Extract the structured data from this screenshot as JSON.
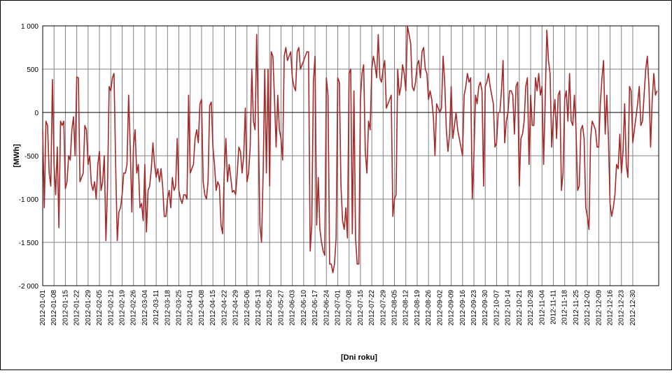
{
  "chart_data": {
    "type": "line",
    "xlabel": "[Dni roku]",
    "ylabel": "[MWh]",
    "ylim": [
      -2000,
      1000
    ],
    "ytick_values": [
      1000,
      500,
      0,
      -500,
      -1000,
      -1500,
      -2000
    ],
    "ytick_labels": [
      "1 000",
      "500",
      "0",
      "-500",
      "-1 000",
      "-1 500",
      "-2 000"
    ],
    "xlim": [
      "2012-01-01",
      "2012-12-31"
    ],
    "xtick_labels": [
      "2012-01-01",
      "2012-01-08",
      "2012-01-15",
      "2012-01-22",
      "2012-01-29",
      "2012-02-05",
      "2012-02-12",
      "2012-02-19",
      "2012-02-26",
      "2012-03-04",
      "2012-03-11",
      "2012-03-18",
      "2012-03-25",
      "2012-04-01",
      "2012-04-08",
      "2012-04-15",
      "2012-04-22",
      "2012-04-29",
      "2012-05-06",
      "2012-05-13",
      "2012-05-20",
      "2012-05-27",
      "2012-06-03",
      "2012-06-10",
      "2012-06-17",
      "2012-06-24",
      "2012-07-01",
      "2012-07-08",
      "2012-07-15",
      "2012-07-22",
      "2012-07-29",
      "2012-08-05",
      "2012-08-12",
      "2012-08-19",
      "2012-08-26",
      "2012-09-02",
      "2012-09-09",
      "2012-09-16",
      "2012-09-23",
      "2012-09-30",
      "2012-10-07",
      "2012-10-14",
      "2012-10-21",
      "2012-10-28",
      "2012-11-04",
      "2012-11-11",
      "2012-11-18",
      "2012-11-25",
      "2012-12-02",
      "2012-12-09",
      "2012-12-16",
      "2012-12-23",
      "2012-12-30"
    ],
    "grid": true,
    "legend": "none",
    "series": [
      {
        "color": "#a52a2a",
        "values": [
          -200,
          -1100,
          -100,
          -150,
          -700,
          -850,
          380,
          -600,
          -950,
          -400,
          -1330,
          -100,
          -150,
          -100,
          -880,
          -800,
          -500,
          -550,
          -200,
          -50,
          -500,
          410,
          400,
          -800,
          -750,
          -700,
          -150,
          -200,
          -600,
          -500,
          -820,
          -900,
          -800,
          -1000,
          -600,
          -450,
          -900,
          -800,
          -500,
          -1480,
          -850,
          300,
          250,
          400,
          450,
          -600,
          -1480,
          -1150,
          -1100,
          -950,
          -700,
          -700,
          -600,
          200,
          -400,
          -1150,
          -400,
          -200,
          -700,
          -600,
          -1100,
          -1050,
          -1250,
          -600,
          -1380,
          -900,
          -850,
          -650,
          -350,
          -600,
          -750,
          -650,
          -800,
          -650,
          -850,
          -1200,
          -1200,
          -1000,
          -900,
          -1100,
          -750,
          -900,
          -850,
          -300,
          -900,
          -1000,
          -1050,
          -950,
          -950,
          -1000,
          200,
          -700,
          -650,
          -600,
          -300,
          -200,
          -350,
          100,
          150,
          -800,
          -950,
          -1000,
          -800,
          80,
          120,
          -400,
          -600,
          -900,
          -800,
          -850,
          -1300,
          -1400,
          -700,
          -300,
          -800,
          -600,
          -750,
          -920,
          -900,
          -950,
          -700,
          -400,
          -450,
          -700,
          -500,
          50,
          -800,
          -700,
          -400,
          500,
          -100,
          -200,
          900,
          -100,
          -1300,
          -1500,
          -700,
          500,
          -700,
          500,
          -850,
          700,
          650,
          150,
          -400,
          200,
          -200,
          -300,
          -550,
          650,
          750,
          600,
          650,
          700,
          400,
          300,
          250,
          700,
          750,
          500,
          550,
          600,
          650,
          700,
          700,
          -1600,
          -1300,
          350,
          650,
          -1300,
          -750,
          -1350,
          -1500,
          -1600,
          -1650,
          400,
          200,
          -1750,
          -1750,
          -1850,
          -1750,
          -1450,
          400,
          350,
          -850,
          -1250,
          -1350,
          -1100,
          -1450,
          450,
          500,
          -1400,
          250,
          -1450,
          -1750,
          -1750,
          150,
          450,
          550,
          -450,
          -700,
          -100,
          -200,
          500,
          650,
          550,
          400,
          900,
          400,
          350,
          500,
          600,
          50,
          100,
          150,
          200,
          -1200,
          -1000,
          -950,
          500,
          200,
          300,
          550,
          450,
          250,
          1000,
          900,
          800,
          300,
          250,
          350,
          550,
          600,
          400,
          700,
          750,
          500,
          450,
          150,
          250,
          150,
          -50,
          -500,
          100,
          50,
          0,
          50,
          650,
          350,
          -200,
          -450,
          -250,
          300,
          -300,
          -150,
          0,
          -200,
          -300,
          -400,
          -500,
          200,
          300,
          450,
          350,
          400,
          -1000,
          -500,
          200,
          100,
          300,
          350,
          250,
          -850,
          300,
          350,
          450,
          300,
          200,
          100,
          -400,
          -350,
          0,
          0,
          250,
          600,
          -350,
          -100,
          0,
          250,
          250,
          200,
          -250,
          300,
          350,
          -850,
          -300,
          -250,
          -100,
          300,
          400,
          -600,
          200,
          -150,
          -150,
          400,
          250,
          450,
          200,
          300,
          -600,
          150,
          950,
          600,
          450,
          -400,
          -50,
          150,
          -300,
          200,
          250,
          -900,
          -700,
          150,
          250,
          -100,
          450,
          -100,
          -150,
          200,
          -200,
          -900,
          -850,
          -200,
          -150,
          -300,
          -1100,
          -1200,
          -1350,
          -300,
          -100,
          -150,
          -200,
          -400,
          -400,
          100,
          400,
          600,
          -250,
          200,
          -300,
          -1050,
          -1200,
          -1100,
          -950,
          -600,
          -650,
          -250,
          -700,
          -450,
          100,
          -600,
          -750,
          300,
          250,
          -350,
          -200,
          -50,
          100,
          300,
          -150,
          -100,
          200,
          500,
          650,
          300,
          -400,
          150,
          450,
          200,
          250
        ]
      }
    ]
  }
}
